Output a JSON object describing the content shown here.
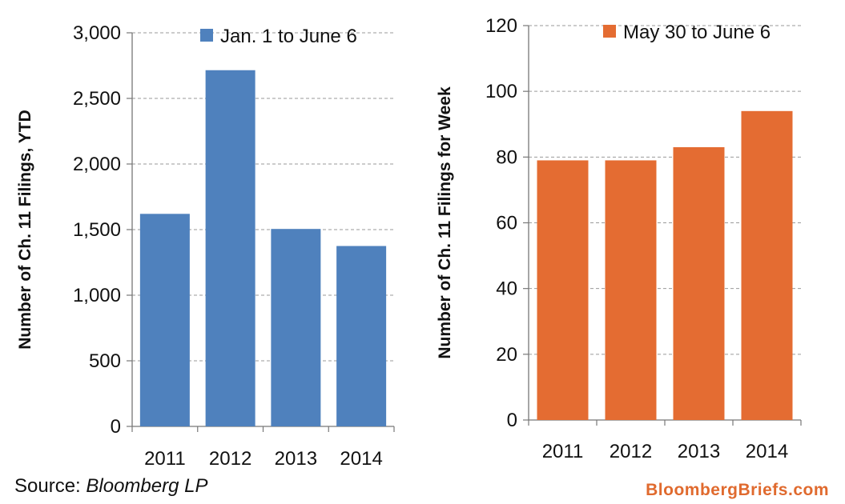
{
  "chart_data": [
    {
      "type": "bar",
      "categories": [
        "2011",
        "2012",
        "2013",
        "2014"
      ],
      "series": [
        {
          "name": "Jan. 1 to June 6",
          "values": [
            1620,
            2715,
            1505,
            1375
          ]
        }
      ],
      "ylabel": "Number of Ch. 11 Filings, YTD",
      "xlabel": "",
      "ylim": [
        0,
        3000
      ],
      "yticks": [
        "0",
        "500",
        "1,000",
        "1,500",
        "2,000",
        "2,500",
        "3,000"
      ],
      "yticks_values": [
        0,
        500,
        1000,
        1500,
        2000,
        2500,
        3000
      ],
      "color": "#4f81bd",
      "grid": "horizontal dashed",
      "legend_position": "top-right"
    },
    {
      "type": "bar",
      "categories": [
        "2011",
        "2012",
        "2013",
        "2014"
      ],
      "series": [
        {
          "name": "May 30 to June 6",
          "values": [
            79,
            79,
            83,
            94
          ]
        }
      ],
      "ylabel": "Number of Ch. 11 Filings for Week",
      "xlabel": "",
      "ylim": [
        0,
        120
      ],
      "yticks": [
        "0",
        "20",
        "40",
        "60",
        "80",
        "100",
        "120"
      ],
      "yticks_values": [
        0,
        20,
        40,
        60,
        80,
        100,
        120
      ],
      "color": "#e46c32",
      "grid": "horizontal dashed",
      "legend_position": "top-right"
    }
  ],
  "footer": {
    "source_prefix": "Source: ",
    "source_name": "Bloomberg LP",
    "brand": "BloombergBriefs.com"
  }
}
